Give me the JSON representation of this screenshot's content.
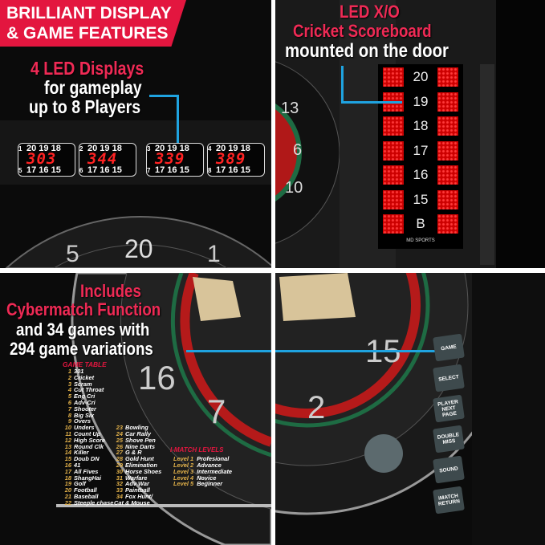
{
  "top_left": {
    "banner": [
      "BRILLIANT DISPLAY",
      "& GAME FEATURES"
    ],
    "callout": {
      "line1": "4 LED Displays",
      "line2": "for gameplay",
      "line3": "up to 8 Players"
    },
    "displays": [
      {
        "players": [
          "1",
          "5"
        ],
        "top": "20 19 18",
        "score": "303",
        "bottom": "17 16 15"
      },
      {
        "players": [
          "2",
          "6"
        ],
        "top": "20 19 18",
        "score": "344",
        "bottom": "17 16 15"
      },
      {
        "players": [
          "3",
          "7"
        ],
        "top": "20 19 18",
        "score": "339",
        "bottom": "17 16 15"
      },
      {
        "players": [
          "4",
          "8"
        ],
        "top": "20 19 18",
        "score": "389",
        "bottom": "17 16 15"
      }
    ],
    "board_numbers": [
      "5",
      "20",
      "1"
    ]
  },
  "top_right": {
    "callout": {
      "line1": "LED X/O",
      "line2": "Cricket Scoreboard",
      "line3": "mounted on the door"
    },
    "rows": [
      "20",
      "19",
      "18",
      "17",
      "16",
      "15",
      "B"
    ],
    "brand": "MD SPORTS",
    "board_numbers": [
      "13",
      "6",
      "10"
    ]
  },
  "bottom_left": {
    "callout": {
      "line1": "Includes",
      "line2": "Cybermatch Function",
      "line3": "and 34 games with",
      "line4": "294 game variations"
    },
    "game_table_title": "GAME TABLE",
    "games": [
      "301",
      "Cricket",
      "Scram",
      "Cut Throat",
      "Eng Cri",
      "Adv-Cri",
      "Shooter",
      "Big Six",
      "Overs",
      "Unders",
      "Count Up",
      "High Score",
      "Round Clk",
      "Killer",
      "Doub DN",
      "41",
      "All Fives",
      "ShangHai",
      "Golf",
      "Football",
      "Baseball",
      "Steeple chase",
      "Bowling",
      "Car Rally",
      "Shove Pen",
      "Nine Darts",
      "G & R",
      "Gold Hunt",
      "Elimination",
      "Horse Shoes",
      "Warfare",
      "Adv War",
      "Paintball",
      "Fox Hunt/ Cat & Mouse"
    ],
    "levels_title": "I-MATCH LEVELS",
    "levels": [
      {
        "level": "Level 1",
        "name": "Profesional"
      },
      {
        "level": "Level 2",
        "name": "Advance"
      },
      {
        "level": "Level 3",
        "name": "Intermediate"
      },
      {
        "level": "Level 4",
        "name": "Novice"
      },
      {
        "level": "Level 5",
        "name": "Beginner"
      }
    ],
    "board_numbers": [
      "16",
      "7"
    ]
  },
  "bottom_right": {
    "buttons": [
      "GAME",
      "SELECT",
      "PLAYER NEXT PAGE",
      "DOUBLE MISS",
      "SOUND",
      "iMATCH RETURN"
    ],
    "board_numbers": [
      "15",
      "2"
    ]
  },
  "colors": {
    "accent_red": "#e3163f",
    "callout_blue": "#1fa3e0",
    "led_red": "#ff2222"
  }
}
